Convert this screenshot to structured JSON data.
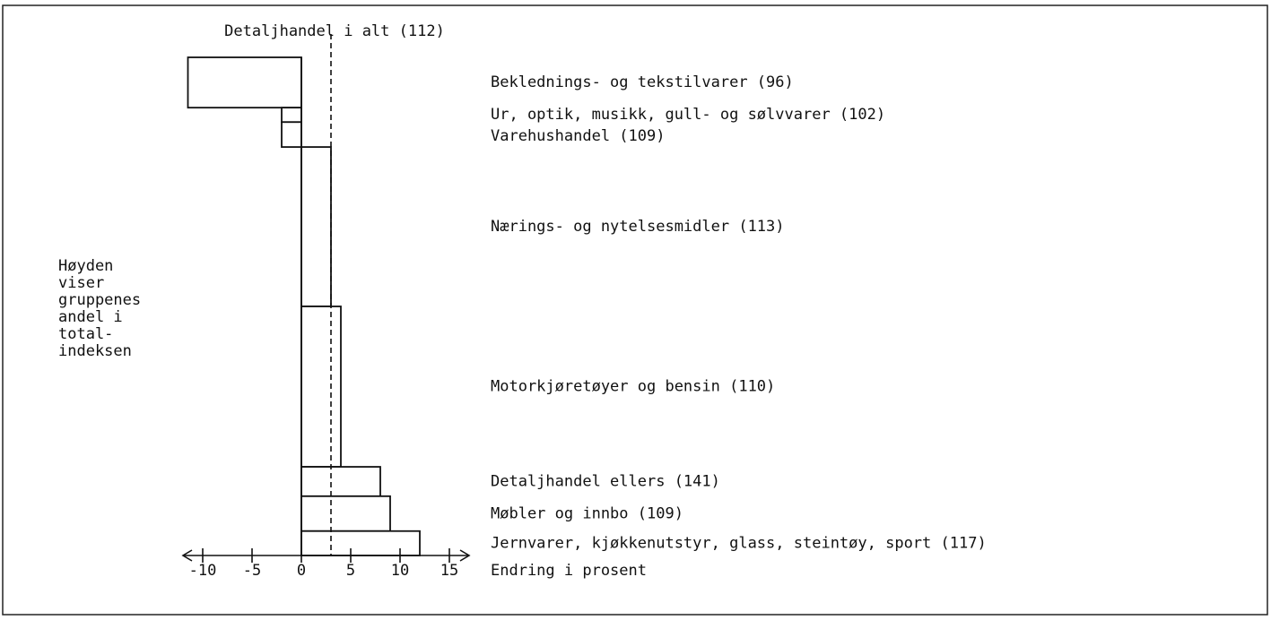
{
  "chart_data": {
    "type": "bar",
    "orientation": "horizontal",
    "categories": [
      "Beklednings- og tekstilvarer (96)",
      "Ur, optik, musikk, gull- og sølvvarer (102)",
      "Varehushandel (109)",
      "Nærings- og nytelsesmidler (113)",
      "Motorkjøretøyer og bensin (110)",
      "Detaljhandel ellers (141)",
      "Møbler og innbo (109)",
      "Jernvarer, kjøkkenutstyr, glass, steintøy, sport (117)"
    ],
    "values": [
      -11.5,
      -2,
      -2,
      3,
      4,
      8,
      9,
      12
    ],
    "weights": [
      10.1,
      2.9,
      5.0,
      32.0,
      32.2,
      5.9,
      7.0,
      4.9
    ],
    "color": "#ffffff",
    "reference": {
      "value": 3,
      "label": "Detaljhandel i alt (112)"
    },
    "xlabel": "Endring i prosent",
    "annotation": [
      "Høyden",
      "viser",
      "gruppenes",
      "andel i",
      "total-",
      "indeksen"
    ],
    "xlim": [
      -12,
      17
    ],
    "xticks": [
      -10,
      -5,
      0,
      5,
      10,
      15
    ]
  }
}
